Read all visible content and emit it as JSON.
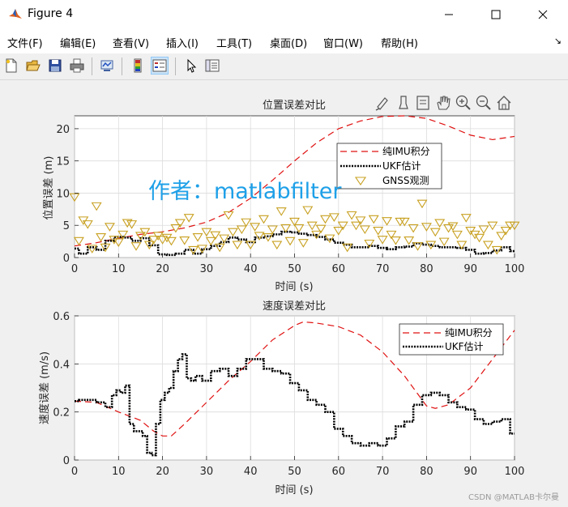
{
  "window": {
    "title": "Figure 4"
  },
  "menu": [
    "文件(F)",
    "编辑(E)",
    "查看(V)",
    "插入(I)",
    "工具(T)",
    "桌面(D)",
    "窗口(W)",
    "帮助(H)"
  ],
  "menu_overflow": "↘",
  "toolbar": {
    "icons": [
      "new-figure-icon",
      "open-file-icon",
      "save-icon",
      "print-icon",
      "link-plot-icon",
      "colorbar-icon",
      "legend-icon",
      "pointer-icon",
      "property-inspector-icon"
    ]
  },
  "axes_toolbar": {
    "icons": [
      "brush-icon",
      "data-cursor-icon",
      "datatip-icon",
      "pan-icon",
      "zoom-in-icon",
      "zoom-out-icon",
      "home-icon"
    ]
  },
  "watermark": "作者：matlabfilter",
  "footer": "CSDN @MATLAB卡尔曼",
  "colors": {
    "imu": "#e01010",
    "ukf": "#000000",
    "gnss": "#c8a020",
    "watermark": "#1ea0e8"
  },
  "chart_data": [
    {
      "type": "line",
      "title": "位置误差对比",
      "xlabel": "时间 (s)",
      "ylabel": "位置误差 (m)",
      "xlim": [
        0,
        100
      ],
      "ylim": [
        0,
        22
      ],
      "xticks": [
        0,
        10,
        20,
        30,
        40,
        50,
        60,
        70,
        80,
        90,
        100
      ],
      "yticks": [
        0,
        5,
        10,
        15,
        20
      ],
      "grid": true,
      "legend_position": "top-right",
      "series": [
        {
          "name": "纯IMU积分",
          "style": "dashed",
          "color": "#e01010",
          "x": [
            0,
            5,
            10,
            15,
            20,
            25,
            30,
            35,
            40,
            45,
            50,
            55,
            60,
            65,
            70,
            75,
            80,
            85,
            90,
            95,
            100
          ],
          "y": [
            1.8,
            2.3,
            3.0,
            3.6,
            4.0,
            4.6,
            5.5,
            7.0,
            9.2,
            12.0,
            15.0,
            17.8,
            20.0,
            21.2,
            21.9,
            22.0,
            21.6,
            20.4,
            19.0,
            18.3,
            18.8
          ]
        },
        {
          "name": "UKF估计",
          "style": "dotted",
          "color": "#000000",
          "x": [
            0,
            2,
            4,
            6,
            8,
            10,
            12,
            14,
            16,
            18,
            20,
            22,
            24,
            26,
            28,
            30,
            32,
            34,
            36,
            38,
            40,
            42,
            44,
            46,
            48,
            50,
            52,
            54,
            56,
            58,
            60,
            62,
            64,
            66,
            68,
            70,
            72,
            74,
            76,
            78,
            80,
            82,
            84,
            86,
            88,
            90,
            92,
            94,
            96,
            98,
            100
          ],
          "y": [
            1.4,
            0.6,
            1.6,
            1.2,
            2.6,
            3.2,
            3.1,
            2.6,
            3.0,
            1.9,
            0.5,
            0.4,
            0.6,
            1.2,
            0.6,
            1.3,
            1.8,
            2.4,
            3.1,
            2.8,
            2.4,
            3.1,
            3.3,
            3.6,
            4.0,
            3.9,
            3.7,
            3.5,
            3.2,
            2.8,
            2.3,
            2.0,
            1.6,
            1.6,
            1.8,
            1.5,
            1.3,
            1.6,
            1.7,
            2.2,
            2.0,
            1.8,
            1.6,
            1.6,
            1.5,
            1.2,
            0.6,
            0.7,
            1.1,
            1.6,
            1.0
          ]
        },
        {
          "name": "GNSS观测",
          "style": "marker-triangle-down",
          "color": "#c8a020",
          "x": [
            0,
            1,
            2,
            3,
            4,
            5,
            6,
            7,
            8,
            9,
            10,
            11,
            12,
            13,
            14,
            15,
            16,
            17,
            18,
            19,
            20,
            21,
            22,
            23,
            24,
            25,
            26,
            27,
            28,
            29,
            30,
            31,
            32,
            33,
            34,
            35,
            36,
            37,
            38,
            39,
            40,
            41,
            42,
            43,
            44,
            45,
            46,
            47,
            48,
            49,
            50,
            51,
            52,
            53,
            54,
            55,
            56,
            57,
            58,
            59,
            60,
            61,
            62,
            63,
            64,
            65,
            66,
            67,
            68,
            69,
            70,
            71,
            72,
            73,
            74,
            75,
            76,
            77,
            78,
            79,
            80,
            81,
            82,
            83,
            84,
            85,
            86,
            87,
            88,
            89,
            90,
            91,
            92,
            93,
            94,
            95,
            96,
            97,
            98,
            99,
            100
          ],
          "y": [
            9.4,
            2.6,
            5.8,
            5.2,
            1.4,
            8.0,
            3.2,
            1.6,
            4.8,
            2.8,
            2.4,
            3.6,
            5.4,
            5.2,
            1.8,
            3.4,
            4.0,
            2.0,
            2.8,
            3.4,
            2.8,
            3.1,
            2.6,
            4.6,
            5.4,
            2.7,
            6.2,
            1.2,
            3.2,
            1.4,
            4.0,
            2.6,
            3.5,
            1.6,
            3.0,
            6.6,
            4.0,
            2.0,
            4.4,
            5.5,
            2.0,
            4.8,
            3.4,
            6.0,
            3.2,
            4.4,
            2.0,
            7.2,
            4.6,
            2.6,
            5.6,
            4.6,
            2.3,
            7.4,
            5.0,
            3.6,
            4.5,
            6.0,
            3.0,
            6.3,
            4.2,
            5.0,
            1.6,
            6.6,
            5.0,
            5.8,
            4.4,
            2.2,
            6.0,
            4.2,
            2.8,
            5.7,
            3.6,
            2.7,
            5.6,
            5.6,
            2.7,
            4.6,
            1.8,
            8.4,
            4.8,
            2.0,
            4.0,
            5.4,
            2.5,
            4.6,
            4.9,
            3.6,
            2.0,
            6.2,
            4.2,
            3.6,
            3.1,
            4.4,
            2.0,
            5.0,
            1.2,
            3.4,
            4.2,
            5.0,
            5.0
          ]
        }
      ]
    },
    {
      "type": "line",
      "title": "速度误差对比",
      "xlabel": "时间 (s)",
      "ylabel": "速度误差 (m/s)",
      "xlim": [
        0,
        100
      ],
      "ylim": [
        0,
        0.6
      ],
      "xticks": [
        0,
        10,
        20,
        30,
        40,
        50,
        60,
        70,
        80,
        90,
        100
      ],
      "yticks": [
        0,
        0.2,
        0.4,
        0.6
      ],
      "grid": true,
      "legend_position": "top-right",
      "series": [
        {
          "name": "纯IMU积分",
          "style": "dashed",
          "color": "#e01010",
          "x": [
            0,
            5,
            10,
            15,
            18,
            20,
            22,
            25,
            30,
            35,
            40,
            45,
            50,
            52,
            55,
            60,
            65,
            70,
            75,
            78,
            80,
            82,
            85,
            90,
            95,
            100
          ],
          "y": [
            0.245,
            0.24,
            0.2,
            0.165,
            0.12,
            0.1,
            0.1,
            0.15,
            0.24,
            0.33,
            0.41,
            0.5,
            0.56,
            0.575,
            0.57,
            0.555,
            0.52,
            0.45,
            0.35,
            0.275,
            0.225,
            0.215,
            0.23,
            0.3,
            0.42,
            0.54
          ]
        },
        {
          "name": "UKF估计",
          "style": "dotted",
          "color": "#000000",
          "x": [
            0,
            2,
            4,
            6,
            8,
            9,
            10,
            11,
            12,
            13,
            14,
            15,
            16,
            17,
            18,
            19,
            20,
            21,
            22,
            23,
            24,
            25,
            26,
            27,
            28,
            30,
            32,
            34,
            36,
            38,
            40,
            42,
            44,
            46,
            48,
            50,
            52,
            54,
            56,
            58,
            60,
            62,
            64,
            66,
            68,
            70,
            72,
            74,
            76,
            78,
            80,
            82,
            84,
            86,
            88,
            90,
            92,
            94,
            96,
            98,
            100
          ],
          "y": [
            0.245,
            0.25,
            0.25,
            0.24,
            0.22,
            0.27,
            0.29,
            0.28,
            0.31,
            0.15,
            0.12,
            0.12,
            0.1,
            0.03,
            0.02,
            0.15,
            0.25,
            0.28,
            0.3,
            0.37,
            0.42,
            0.44,
            0.34,
            0.33,
            0.35,
            0.33,
            0.37,
            0.38,
            0.35,
            0.38,
            0.42,
            0.42,
            0.38,
            0.37,
            0.36,
            0.32,
            0.29,
            0.25,
            0.23,
            0.2,
            0.13,
            0.1,
            0.07,
            0.06,
            0.07,
            0.06,
            0.09,
            0.14,
            0.16,
            0.23,
            0.27,
            0.28,
            0.27,
            0.24,
            0.22,
            0.21,
            0.17,
            0.15,
            0.16,
            0.17,
            0.11
          ]
        }
      ]
    }
  ]
}
